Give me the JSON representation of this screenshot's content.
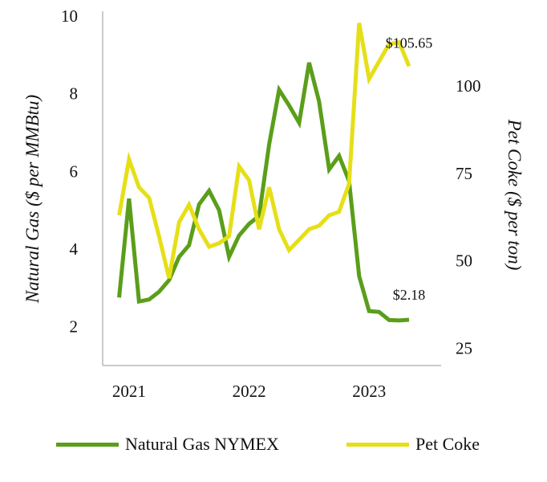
{
  "chart_data": {
    "type": "line",
    "title": "",
    "xlabel": "",
    "x_tick_labels": [
      "2021",
      "2022",
      "2023"
    ],
    "x_tick_values": [
      2021.0,
      2022.0,
      2023.0
    ],
    "xlim": [
      2020.78,
      2023.6
    ],
    "left_axis": {
      "label": "Natural Gas ($ per MMBtu)",
      "ylim": [
        1.0,
        10.0
      ],
      "ticks": [
        2,
        4,
        6,
        8,
        10
      ]
    },
    "right_axis": {
      "label": "Pet Coke ($ per ton)",
      "ylim": [
        20.0,
        120.0
      ],
      "ticks": [
        25,
        50,
        75,
        100
      ]
    },
    "series": [
      {
        "name": "Natural Gas NYMEX",
        "axis": "left",
        "color": "#5a9e1a",
        "x": [
          2020.917,
          2021.0,
          2021.083,
          2021.167,
          2021.25,
          2021.333,
          2021.417,
          2021.5,
          2021.583,
          2021.667,
          2021.75,
          2021.833,
          2021.917,
          2022.0,
          2022.083,
          2022.167,
          2022.25,
          2022.333,
          2022.417,
          2022.5,
          2022.583,
          2022.667,
          2022.75,
          2022.833,
          2022.917,
          2023.0,
          2023.083,
          2023.167,
          2023.25,
          2023.333
        ],
        "values": [
          2.75,
          5.3,
          2.65,
          2.7,
          2.9,
          3.2,
          3.8,
          4.1,
          5.15,
          5.5,
          5.0,
          3.8,
          4.35,
          4.65,
          4.85,
          6.7,
          8.1,
          7.7,
          7.25,
          8.8,
          7.8,
          6.05,
          6.4,
          5.75,
          3.3,
          2.4,
          2.38,
          2.17,
          2.16,
          2.18
        ]
      },
      {
        "name": "Pet Coke",
        "axis": "right",
        "color": "#e6df17",
        "x": [
          2020.917,
          2021.0,
          2021.083,
          2021.167,
          2021.25,
          2021.333,
          2021.417,
          2021.5,
          2021.583,
          2021.667,
          2021.75,
          2021.833,
          2021.917,
          2022.0,
          2022.083,
          2022.167,
          2022.25,
          2022.333,
          2022.417,
          2022.5,
          2022.583,
          2022.667,
          2022.75,
          2022.833,
          2022.917,
          2023.0,
          2023.083,
          2023.167,
          2023.25,
          2023.333
        ],
        "values": [
          63,
          79,
          71,
          68,
          57,
          45,
          61,
          66,
          59,
          54,
          55,
          57,
          77,
          73,
          59,
          71,
          59,
          53,
          56,
          59,
          60,
          63,
          64,
          72,
          118,
          102,
          107,
          112,
          112.5,
          105.65
        ]
      }
    ],
    "annotations": [
      {
        "text": "$105.65",
        "series": "Pet Coke",
        "x": 2023.333
      },
      {
        "text": "$2.18",
        "series": "Natural Gas NYMEX",
        "x": 2023.333
      }
    ],
    "legend": {
      "position": "bottom"
    },
    "grid": false
  }
}
